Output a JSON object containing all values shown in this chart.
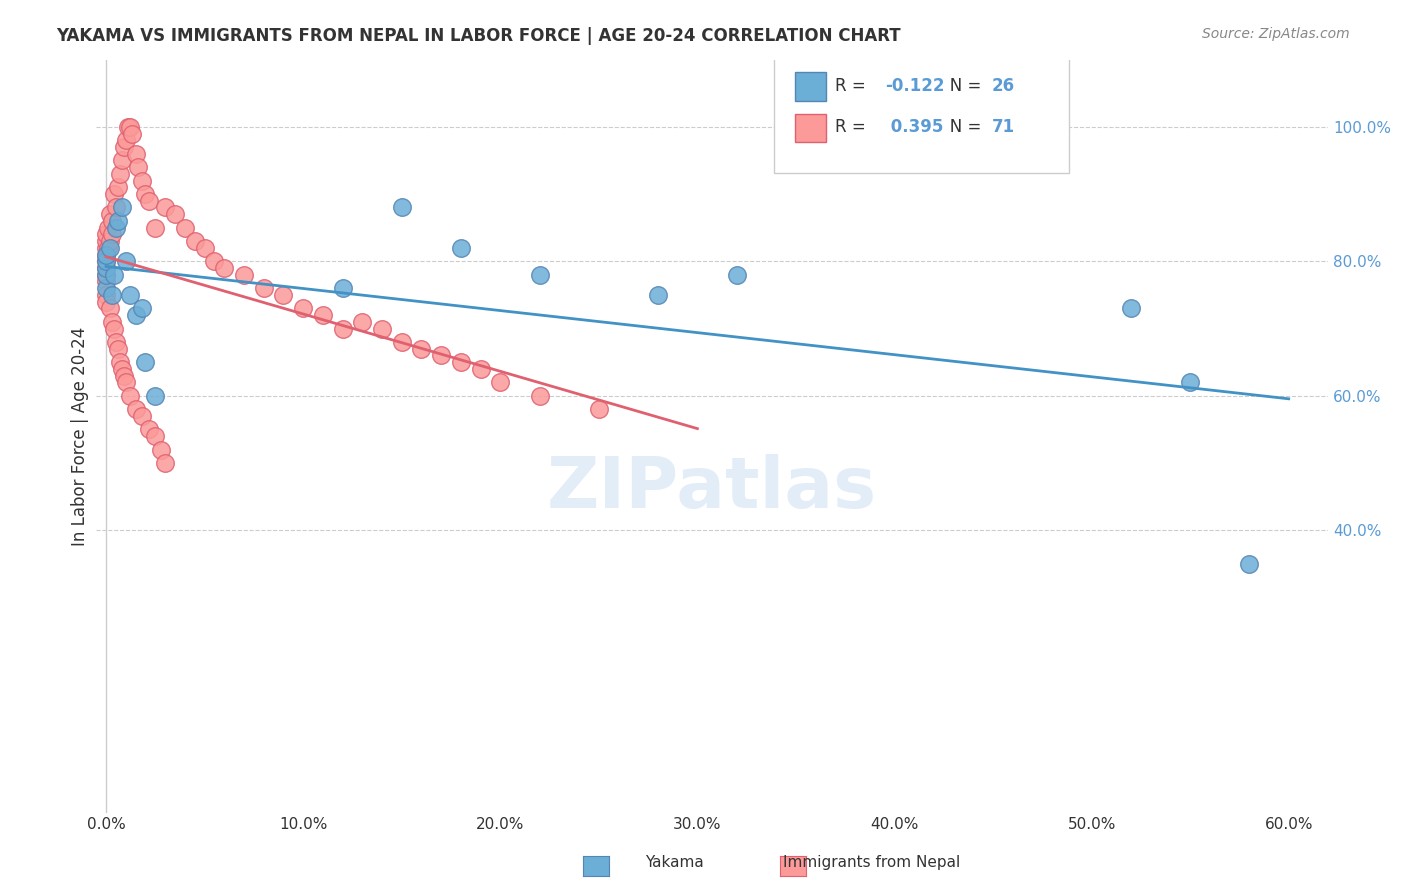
{
  "title": "YAKAMA VS IMMIGRANTS FROM NEPAL IN LABOR FORCE | AGE 20-24 CORRELATION CHART",
  "source": "Source: ZipAtlas.com",
  "ylabel": "In Labor Force | Age 20-24",
  "xlabel_ticks": [
    "0.0%",
    "10.0%",
    "20.0%",
    "30.0%",
    "40.0%",
    "50.0%",
    "60.0%"
  ],
  "ytick_labels": [
    "100.0%",
    "80.0%",
    "60.0%",
    "40.0%"
  ],
  "xlim": [
    -0.005,
    0.62
  ],
  "ylim": [
    -0.02,
    1.08
  ],
  "watermark": "ZIPatlas",
  "yakama_color": "#6baed6",
  "yakama_edge": "#4292c6",
  "nepal_color": "#fb9a99",
  "nepal_edge": "#e31a1c",
  "yakama_R": -0.122,
  "yakama_N": 26,
  "nepal_R": 0.395,
  "nepal_N": 71,
  "yakama_x": [
    0.0,
    0.0,
    0.0,
    0.0,
    0.0,
    0.002,
    0.003,
    0.004,
    0.005,
    0.006,
    0.008,
    0.01,
    0.012,
    0.015,
    0.018,
    0.02,
    0.025,
    0.12,
    0.15,
    0.18,
    0.22,
    0.28,
    0.32,
    0.52,
    0.55,
    0.58
  ],
  "yakama_y": [
    0.76,
    0.78,
    0.79,
    0.8,
    0.81,
    0.82,
    0.75,
    0.78,
    0.85,
    0.86,
    0.88,
    0.8,
    0.75,
    0.72,
    0.73,
    0.65,
    0.6,
    0.76,
    0.88,
    0.82,
    0.78,
    0.75,
    0.78,
    0.73,
    0.62,
    0.35
  ],
  "nepal_x": [
    0.0,
    0.0,
    0.0,
    0.0,
    0.0,
    0.0,
    0.0,
    0.0,
    0.0,
    0.0,
    0.001,
    0.001,
    0.002,
    0.002,
    0.003,
    0.003,
    0.004,
    0.005,
    0.006,
    0.007,
    0.008,
    0.009,
    0.01,
    0.011,
    0.012,
    0.013,
    0.015,
    0.016,
    0.018,
    0.02,
    0.022,
    0.025,
    0.03,
    0.035,
    0.04,
    0.045,
    0.05,
    0.055,
    0.06,
    0.07,
    0.08,
    0.09,
    0.1,
    0.11,
    0.12,
    0.13,
    0.14,
    0.15,
    0.16,
    0.17,
    0.18,
    0.19,
    0.2,
    0.22,
    0.25,
    0.002,
    0.003,
    0.004,
    0.005,
    0.006,
    0.007,
    0.008,
    0.009,
    0.01,
    0.012,
    0.015,
    0.018,
    0.022,
    0.025,
    0.028,
    0.03
  ],
  "nepal_y": [
    0.8,
    0.81,
    0.82,
    0.83,
    0.84,
    0.78,
    0.79,
    0.77,
    0.75,
    0.74,
    0.82,
    0.85,
    0.83,
    0.87,
    0.86,
    0.84,
    0.9,
    0.88,
    0.91,
    0.93,
    0.95,
    0.97,
    0.98,
    1.0,
    1.0,
    0.99,
    0.96,
    0.94,
    0.92,
    0.9,
    0.89,
    0.85,
    0.88,
    0.87,
    0.85,
    0.83,
    0.82,
    0.8,
    0.79,
    0.78,
    0.76,
    0.75,
    0.73,
    0.72,
    0.7,
    0.71,
    0.7,
    0.68,
    0.67,
    0.66,
    0.65,
    0.64,
    0.62,
    0.6,
    0.58,
    0.73,
    0.71,
    0.7,
    0.68,
    0.67,
    0.65,
    0.64,
    0.63,
    0.62,
    0.6,
    0.58,
    0.57,
    0.55,
    0.54,
    0.52,
    0.5
  ]
}
